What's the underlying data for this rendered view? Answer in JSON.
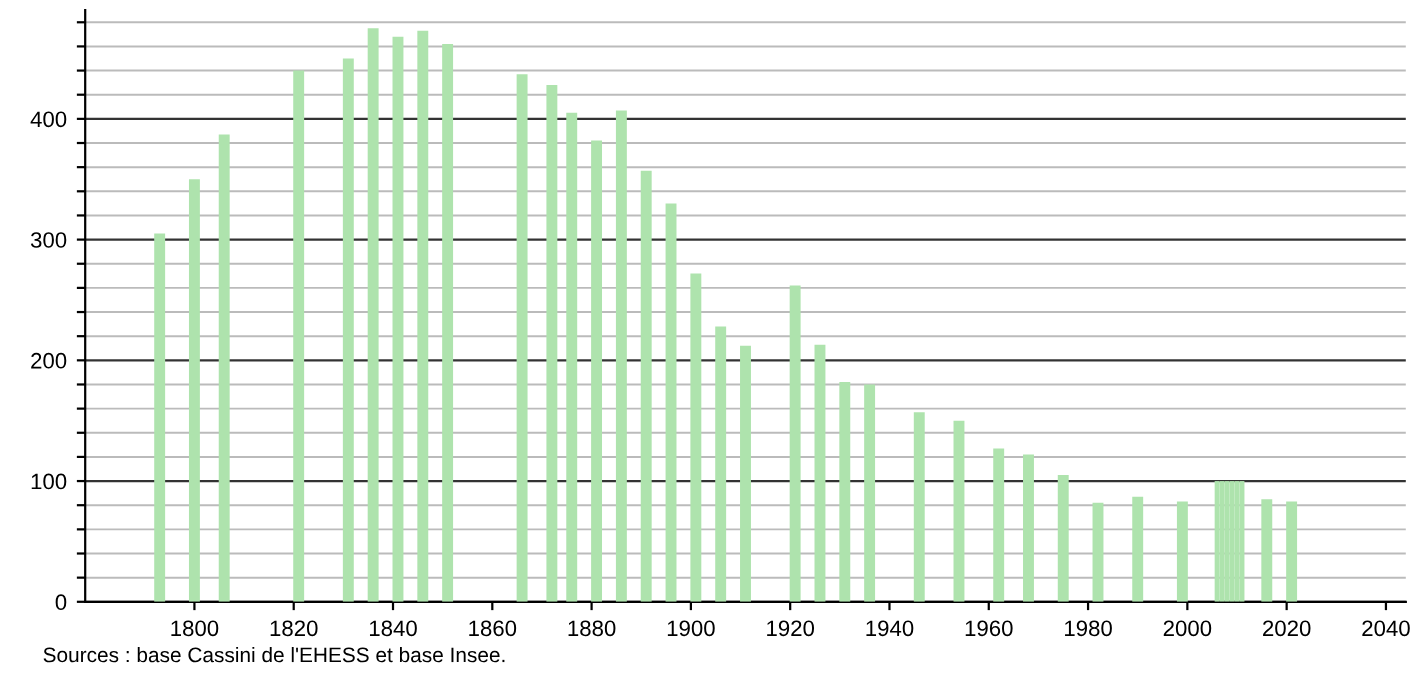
{
  "chart_data": {
    "type": "bar",
    "x": [
      1793,
      1800,
      1806,
      1821,
      1831,
      1836,
      1841,
      1846,
      1851,
      1866,
      1872,
      1876,
      1881,
      1886,
      1891,
      1896,
      1901,
      1906,
      1911,
      1921,
      1926,
      1931,
      1936,
      1946,
      1954,
      1962,
      1968,
      1975,
      1982,
      1990,
      1999,
      2006,
      2007,
      2008,
      2009,
      2010,
      2011,
      2016,
      2021
    ],
    "values": [
      305,
      350,
      387,
      440,
      450,
      475,
      468,
      473,
      462,
      437,
      428,
      405,
      382,
      407,
      357,
      330,
      272,
      228,
      212,
      262,
      213,
      182,
      180,
      157,
      150,
      127,
      122,
      105,
      82,
      87,
      83,
      100,
      100,
      100,
      100,
      100,
      100,
      85,
      83
    ],
    "color": "#aee3ad",
    "xlim": [
      1778,
      2044
    ],
    "xticks": [
      1800,
      1820,
      1840,
      1860,
      1880,
      1900,
      1920,
      1940,
      1960,
      1980,
      2000,
      2020,
      2040
    ],
    "ylim": [
      0,
      490
    ],
    "yticks": [
      0,
      {
        "value": 20,
        "label": null
      },
      {
        "value": 40,
        "label": null
      },
      {
        "value": 60,
        "label": null
      },
      {
        "value": 80,
        "label": null
      },
      100,
      {
        "value": 120,
        "label": null
      },
      {
        "value": 140,
        "label": null
      },
      {
        "value": 160,
        "label": null
      },
      {
        "value": 180,
        "label": null
      },
      200,
      {
        "value": 220,
        "label": null
      },
      {
        "value": 240,
        "label": null
      },
      {
        "value": 260,
        "label": null
      },
      {
        "value": 280,
        "label": null
      },
      300,
      {
        "value": 320,
        "label": null
      },
      {
        "value": 340,
        "label": null
      },
      {
        "value": 360,
        "label": null
      },
      {
        "value": 380,
        "label": null
      },
      400,
      {
        "value": 420,
        "label": null
      },
      {
        "value": 440,
        "label": null
      },
      {
        "value": 460,
        "label": null
      },
      {
        "value": 480,
        "label": null
      }
    ],
    "grid": "y",
    "annotations": [
      "Sources : base Cassini de l'EHESS et base Insee."
    ]
  }
}
